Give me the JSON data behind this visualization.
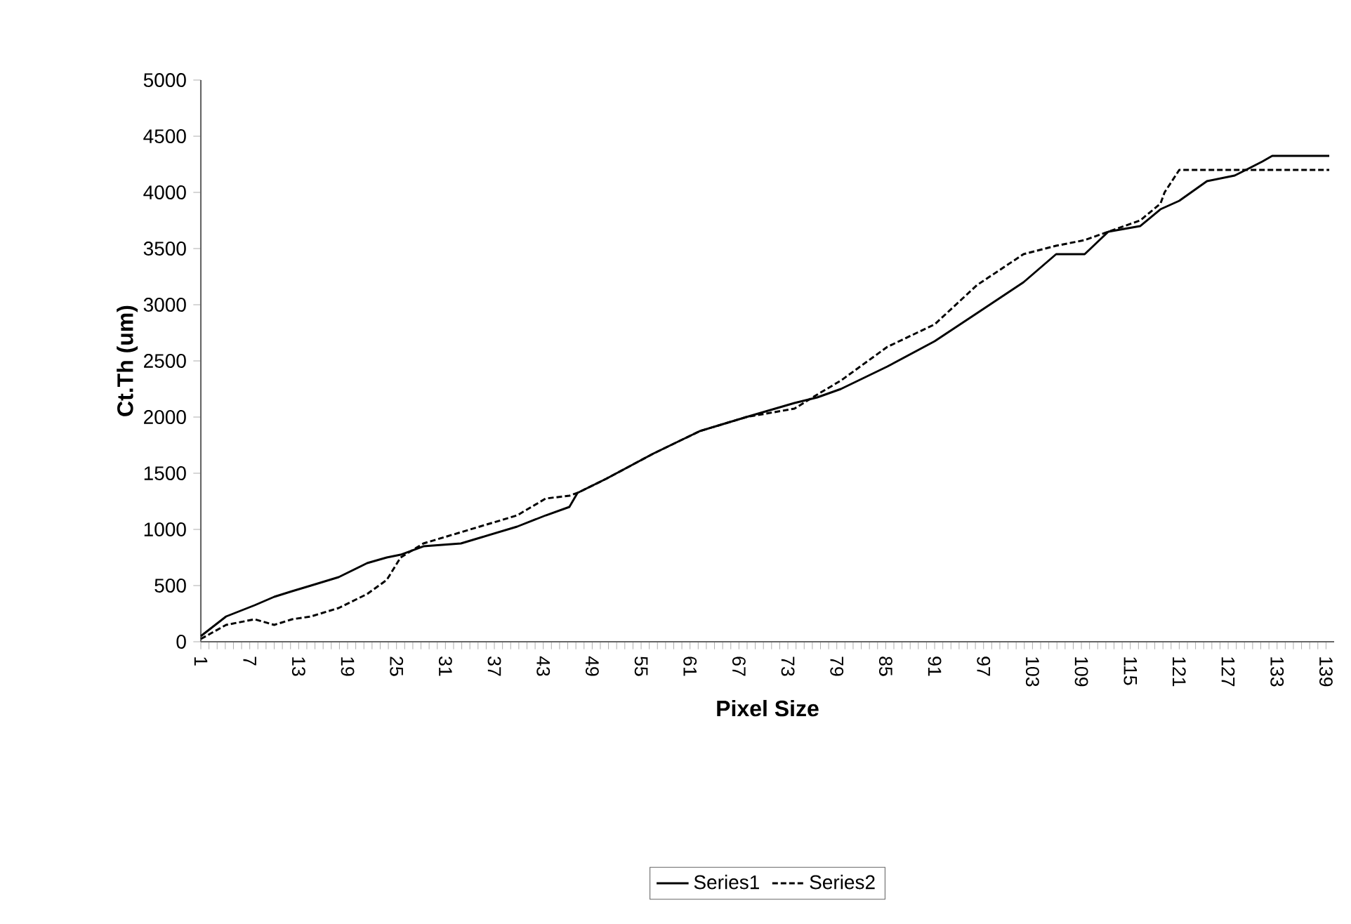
{
  "chart_data": {
    "type": "line",
    "xlabel": "Pixel Size",
    "ylabel": "Ct.Th (um)",
    "xlim": [
      1,
      140
    ],
    "xticks": [
      1,
      7,
      13,
      19,
      25,
      31,
      37,
      43,
      49,
      55,
      61,
      67,
      73,
      79,
      85,
      91,
      97,
      103,
      109,
      115,
      121,
      127,
      133,
      139
    ],
    "ylim": [
      0,
      5000
    ],
    "yticks": [
      0,
      500,
      1000,
      1500,
      2000,
      2500,
      3000,
      3500,
      4000,
      4500,
      5000
    ],
    "grid": false,
    "legend": "bottom",
    "marker": "none",
    "series": [
      {
        "name": "Series1",
        "color": "#000000",
        "line_style": "solid",
        "x": [
          1,
          4.1,
          7.6,
          10,
          12.2,
          14.5,
          17.9,
          21.4,
          23.8,
          25.5,
          28.3,
          32.9,
          35.2,
          39.8,
          43.3,
          46.2,
          47.2,
          50.7,
          56.5,
          62.2,
          67.9,
          73.8,
          76.6,
          79.5,
          85.2,
          91,
          96.2,
          101.9,
          105.9,
          109.4,
          112.3,
          116.2,
          118.7,
          121,
          124.4,
          127.8,
          131.2,
          132.4,
          139.4
        ],
        "values": [
          50,
          225,
          325,
          400,
          450,
          500,
          575,
          700,
          750,
          775,
          850,
          875,
          925,
          1025,
          1125,
          1200,
          1325,
          1450,
          1675,
          1875,
          2000,
          2125,
          2175,
          2250,
          2450,
          2675,
          2925,
          3200,
          3450,
          3450,
          3650,
          3700,
          3850,
          3925,
          4100,
          4150,
          4275,
          4325,
          4325
        ]
      },
      {
        "name": "Series2",
        "color": "#000000",
        "line_style": "dashed",
        "x": [
          1,
          4.1,
          7.6,
          10,
          12.2,
          14.5,
          17.9,
          21.4,
          23.8,
          25.5,
          28.3,
          32.9,
          35.2,
          39.8,
          43.3,
          46.2,
          47.2,
          50.7,
          56.5,
          62.2,
          67.9,
          73.8,
          76.6,
          79.5,
          85.2,
          91,
          96.2,
          101.9,
          105.9,
          109.4,
          112.3,
          116.2,
          118.7,
          119.2,
          121,
          122,
          139.4
        ],
        "values": [
          25,
          150,
          200,
          150,
          200,
          225,
          300,
          425,
          550,
          750,
          875,
          975,
          1025,
          1125,
          1275,
          1300,
          1325,
          1450,
          1675,
          1875,
          2000,
          2075,
          2200,
          2325,
          2625,
          2825,
          3175,
          3450,
          3525,
          3575,
          3650,
          3750,
          3900,
          4000,
          4200,
          4200,
          4200
        ]
      }
    ]
  }
}
